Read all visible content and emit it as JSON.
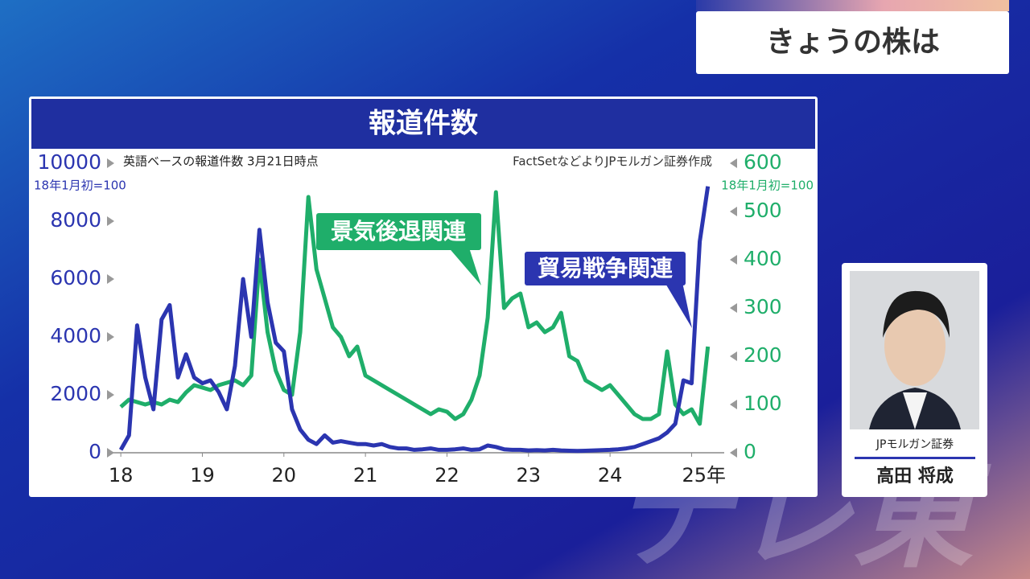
{
  "header": {
    "title": "きょうの株は"
  },
  "chart_data": {
    "type": "line",
    "title": "報道件数",
    "subtitle": "英語ベースの報道件数 3月21日時点",
    "source": "FactSetなどよりJPモルガン証券作成",
    "ylabel": "18年1月初=100",
    "y2label": "18年1月初=100",
    "x": [
      18.0,
      18.1,
      18.2,
      18.3,
      18.4,
      18.5,
      18.6,
      18.7,
      18.8,
      18.9,
      19.0,
      19.1,
      19.2,
      19.3,
      19.4,
      19.5,
      19.6,
      19.7,
      19.8,
      19.9,
      20.0,
      20.1,
      20.2,
      20.3,
      20.4,
      20.5,
      20.6,
      20.7,
      20.8,
      20.9,
      21.0,
      21.1,
      21.2,
      21.3,
      21.4,
      21.5,
      21.6,
      21.7,
      21.8,
      21.9,
      22.0,
      22.1,
      22.2,
      22.3,
      22.4,
      22.5,
      22.6,
      22.7,
      22.8,
      22.9,
      23.0,
      23.1,
      23.2,
      23.3,
      23.4,
      23.5,
      23.6,
      23.7,
      23.8,
      23.9,
      24.0,
      24.1,
      24.2,
      24.3,
      24.4,
      24.5,
      24.6,
      24.7,
      24.8,
      24.9,
      25.0,
      25.1,
      25.2
    ],
    "xlim": [
      17.9,
      25.4
    ],
    "xticks": [
      18,
      19,
      20,
      21,
      22,
      23,
      24,
      {
        "value": 25,
        "label": "25年"
      }
    ],
    "ylim": [
      0,
      10000
    ],
    "yticks": [
      0,
      2000,
      4000,
      6000,
      8000,
      10000
    ],
    "y2lim": [
      0,
      600
    ],
    "y2ticks": [
      0,
      100,
      200,
      300,
      400,
      500,
      600
    ],
    "series": [
      {
        "name": "貿易戦争関連",
        "color": "#2b35b0",
        "values": [
          100,
          600,
          4400,
          2600,
          1500,
          4600,
          5100,
          2600,
          3400,
          2600,
          2400,
          2500,
          2100,
          1500,
          3000,
          6000,
          4000,
          7700,
          5200,
          3800,
          3500,
          1500,
          800,
          450,
          300,
          600,
          350,
          400,
          350,
          300,
          300,
          250,
          300,
          200,
          150,
          150,
          100,
          120,
          150,
          100,
          100,
          120,
          150,
          100,
          120,
          250,
          200,
          120,
          100,
          100,
          80,
          90,
          80,
          100,
          80,
          70,
          60,
          70,
          80,
          90,
          100,
          120,
          150,
          200,
          300,
          400,
          500,
          700,
          1000,
          2500,
          2400,
          7300,
          9200
        ]
      },
      {
        "name": "景気後退関連",
        "color": "#1fae6a",
        "axis": "y2",
        "values": [
          95,
          110,
          105,
          100,
          105,
          100,
          110,
          105,
          125,
          140,
          135,
          130,
          140,
          145,
          150,
          140,
          160,
          400,
          250,
          170,
          130,
          120,
          250,
          530,
          380,
          320,
          260,
          240,
          200,
          220,
          160,
          150,
          140,
          130,
          120,
          110,
          100,
          90,
          80,
          90,
          85,
          70,
          80,
          110,
          160,
          280,
          540,
          300,
          320,
          330,
          260,
          270,
          250,
          260,
          290,
          200,
          190,
          150,
          140,
          130,
          140,
          120,
          100,
          80,
          70,
          70,
          80,
          210,
          100,
          80,
          90,
          60,
          220
        ]
      }
    ]
  },
  "presenter": {
    "company": "JPモルガン証券",
    "name": "高田 将成"
  },
  "watermark": "テレ東"
}
